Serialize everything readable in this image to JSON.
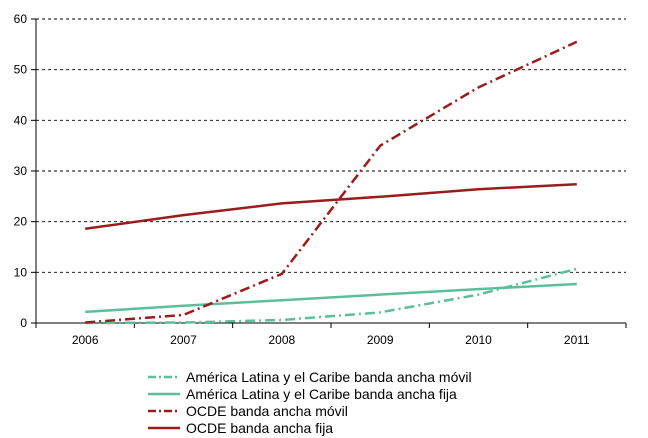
{
  "chart_data": {
    "type": "line",
    "title": "",
    "xlabel": "",
    "ylabel": "",
    "categories": [
      "2006",
      "2007",
      "2008",
      "2009",
      "2010",
      "2011"
    ],
    "ylim": [
      0,
      60
    ],
    "yticks": [
      0,
      10,
      20,
      30,
      40,
      50,
      60
    ],
    "grid": "horizontal dashed",
    "legend_position": "bottom",
    "series": [
      {
        "name": "América Latina y el Caribe banda ancha móvil",
        "color": "#5cbf9a",
        "dash": "dash-dot",
        "values": [
          0.0,
          0.1,
          0.6,
          2.1,
          5.6,
          10.7
        ]
      },
      {
        "name": "América Latina y el Caribe banda ancha fija",
        "color": "#5cbf9a",
        "dash": "solid",
        "values": [
          2.2,
          3.4,
          4.5,
          5.6,
          6.7,
          7.7
        ]
      },
      {
        "name": "OCDE banda ancha móvil",
        "color": "#9b1c1c",
        "dash": "dash-dot",
        "values": [
          0.1,
          1.6,
          9.7,
          35.0,
          46.5,
          55.5
        ]
      },
      {
        "name": "OCDE banda ancha fija",
        "color": "#9b1c1c",
        "dash": "solid",
        "values": [
          18.6,
          21.3,
          23.6,
          24.9,
          26.4,
          27.4
        ]
      }
    ]
  }
}
